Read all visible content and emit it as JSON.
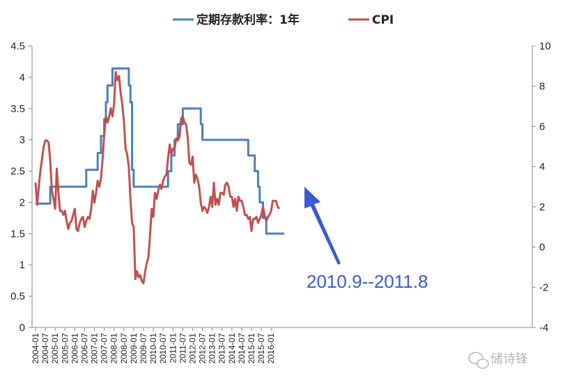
{
  "chart_data": {
    "type": "line",
    "title": "",
    "legend": {
      "placement": "top-center"
    },
    "grid": false,
    "x_ticks": [
      "2004-01",
      "2004-07",
      "2005-01",
      "2005-07",
      "2006-01",
      "2006-07",
      "2007-01",
      "2007-07",
      "2008-01",
      "2008-07",
      "2009-01",
      "2009-07",
      "2010-01",
      "2010-07",
      "2011-01",
      "2011-07",
      "2012-01",
      "2012-07",
      "2013-01",
      "2013-07",
      "2014-01",
      "2014-07",
      "2015-01",
      "2015-07",
      "2016-01"
    ],
    "y_left": {
      "min": 0,
      "max": 4.5,
      "ticks": [
        "0",
        "0.5",
        "1",
        "1.5",
        "2",
        "2.5",
        "3",
        "3.5",
        "4",
        "4.5"
      ]
    },
    "y_right": {
      "min": -4,
      "max": 10,
      "ticks": [
        "-4",
        "-2",
        "0",
        "2",
        "4",
        "6",
        "8",
        "10"
      ]
    },
    "series": [
      {
        "name": "定期存款利率：1年",
        "axis": "left",
        "color": "#4a7ebb",
        "step_points": [
          [
            "2004-01",
            1.98
          ],
          [
            "2004-10",
            1.98
          ],
          [
            "2004-10",
            2.25
          ],
          [
            "2006-08",
            2.25
          ],
          [
            "2006-08",
            2.52
          ],
          [
            "2007-03",
            2.52
          ],
          [
            "2007-03",
            2.79
          ],
          [
            "2007-05",
            2.79
          ],
          [
            "2007-05",
            3.06
          ],
          [
            "2007-07",
            3.06
          ],
          [
            "2007-07",
            3.33
          ],
          [
            "2007-08",
            3.33
          ],
          [
            "2007-08",
            3.6
          ],
          [
            "2007-09",
            3.6
          ],
          [
            "2007-09",
            3.87
          ],
          [
            "2007-12",
            3.87
          ],
          [
            "2007-12",
            4.14
          ],
          [
            "2008-10",
            4.14
          ],
          [
            "2008-10",
            3.87
          ],
          [
            "2008-11",
            3.87
          ],
          [
            "2008-11",
            3.6
          ],
          [
            "2008-12",
            3.6
          ],
          [
            "2008-12",
            2.52
          ],
          [
            "2009-01",
            2.52
          ],
          [
            "2009-01",
            2.25
          ],
          [
            "2010-10",
            2.25
          ],
          [
            "2010-10",
            2.5
          ],
          [
            "2010-12",
            2.5
          ],
          [
            "2010-12",
            2.75
          ],
          [
            "2011-02",
            2.75
          ],
          [
            "2011-02",
            3.0
          ],
          [
            "2011-04",
            3.0
          ],
          [
            "2011-04",
            3.25
          ],
          [
            "2011-07",
            3.25
          ],
          [
            "2011-07",
            3.5
          ],
          [
            "2012-06",
            3.5
          ],
          [
            "2012-06",
            3.25
          ],
          [
            "2012-07",
            3.25
          ],
          [
            "2012-07",
            3.0
          ],
          [
            "2014-11",
            3.0
          ],
          [
            "2014-11",
            2.75
          ],
          [
            "2015-03",
            2.75
          ],
          [
            "2015-03",
            2.5
          ],
          [
            "2015-05",
            2.5
          ],
          [
            "2015-05",
            2.25
          ],
          [
            "2015-06",
            2.25
          ],
          [
            "2015-06",
            2.0
          ],
          [
            "2015-08",
            2.0
          ],
          [
            "2015-08",
            1.75
          ],
          [
            "2015-10",
            1.75
          ],
          [
            "2015-10",
            1.5
          ],
          [
            "2016-09",
            1.5
          ]
        ]
      },
      {
        "name": "CPI",
        "axis": "right",
        "color": "#c0504d",
        "points": [
          [
            "2004-01",
            3.2
          ],
          [
            "2004-02",
            2.1
          ],
          [
            "2004-03",
            3.0
          ],
          [
            "2004-04",
            3.8
          ],
          [
            "2004-05",
            4.4
          ],
          [
            "2004-06",
            5.0
          ],
          [
            "2004-07",
            5.3
          ],
          [
            "2004-08",
            5.3
          ],
          [
            "2004-09",
            5.2
          ],
          [
            "2004-10",
            4.3
          ],
          [
            "2004-11",
            2.8
          ],
          [
            "2004-12",
            2.4
          ],
          [
            "2005-01",
            1.9
          ],
          [
            "2005-02",
            3.9
          ],
          [
            "2005-03",
            2.7
          ],
          [
            "2005-04",
            1.8
          ],
          [
            "2005-05",
            1.8
          ],
          [
            "2005-06",
            1.6
          ],
          [
            "2005-07",
            1.8
          ],
          [
            "2005-08",
            1.3
          ],
          [
            "2005-09",
            0.9
          ],
          [
            "2005-10",
            1.2
          ],
          [
            "2005-11",
            1.3
          ],
          [
            "2005-12",
            1.6
          ],
          [
            "2006-01",
            1.9
          ],
          [
            "2006-02",
            0.9
          ],
          [
            "2006-03",
            0.8
          ],
          [
            "2006-04",
            1.2
          ],
          [
            "2006-05",
            1.4
          ],
          [
            "2006-06",
            1.5
          ],
          [
            "2006-07",
            1.0
          ],
          [
            "2006-08",
            1.3
          ],
          [
            "2006-09",
            1.5
          ],
          [
            "2006-10",
            1.4
          ],
          [
            "2006-11",
            1.9
          ],
          [
            "2006-12",
            2.8
          ],
          [
            "2007-01",
            2.2
          ],
          [
            "2007-02",
            2.7
          ],
          [
            "2007-03",
            3.3
          ],
          [
            "2007-04",
            3.0
          ],
          [
            "2007-05",
            3.4
          ],
          [
            "2007-06",
            4.4
          ],
          [
            "2007-07",
            5.6
          ],
          [
            "2007-08",
            6.5
          ],
          [
            "2007-09",
            6.2
          ],
          [
            "2007-10",
            6.5
          ],
          [
            "2007-11",
            6.9
          ],
          [
            "2007-12",
            6.5
          ],
          [
            "2008-01",
            7.1
          ],
          [
            "2008-02",
            8.7
          ],
          [
            "2008-03",
            8.3
          ],
          [
            "2008-04",
            8.5
          ],
          [
            "2008-05",
            7.7
          ],
          [
            "2008-06",
            7.1
          ],
          [
            "2008-07",
            6.3
          ],
          [
            "2008-08",
            4.9
          ],
          [
            "2008-09",
            4.6
          ],
          [
            "2008-10",
            4.0
          ],
          [
            "2008-11",
            2.4
          ],
          [
            "2008-12",
            1.2
          ],
          [
            "2009-01",
            1.0
          ],
          [
            "2009-02",
            -1.6
          ],
          [
            "2009-03",
            -1.2
          ],
          [
            "2009-04",
            -1.5
          ],
          [
            "2009-05",
            -1.4
          ],
          [
            "2009-06",
            -1.7
          ],
          [
            "2009-07",
            -1.8
          ],
          [
            "2009-08",
            -1.2
          ],
          [
            "2009-09",
            -0.8
          ],
          [
            "2009-10",
            -0.5
          ],
          [
            "2009-11",
            0.6
          ],
          [
            "2009-12",
            1.9
          ],
          [
            "2010-01",
            1.5
          ],
          [
            "2010-02",
            2.7
          ],
          [
            "2010-03",
            2.4
          ],
          [
            "2010-04",
            2.8
          ],
          [
            "2010-05",
            3.1
          ],
          [
            "2010-06",
            2.9
          ],
          [
            "2010-07",
            3.3
          ],
          [
            "2010-08",
            3.5
          ],
          [
            "2010-09",
            3.6
          ],
          [
            "2010-10",
            4.4
          ],
          [
            "2010-11",
            5.1
          ],
          [
            "2010-12",
            4.6
          ],
          [
            "2011-01",
            4.9
          ],
          [
            "2011-02",
            4.9
          ],
          [
            "2011-03",
            5.4
          ],
          [
            "2011-04",
            5.3
          ],
          [
            "2011-05",
            5.5
          ],
          [
            "2011-06",
            6.4
          ],
          [
            "2011-07",
            6.5
          ],
          [
            "2011-08",
            6.2
          ],
          [
            "2011-09",
            6.1
          ],
          [
            "2011-10",
            5.5
          ],
          [
            "2011-11",
            4.2
          ],
          [
            "2011-12",
            4.1
          ],
          [
            "2012-01",
            4.5
          ],
          [
            "2012-02",
            3.2
          ],
          [
            "2012-03",
            3.6
          ],
          [
            "2012-04",
            3.4
          ],
          [
            "2012-05",
            3.0
          ],
          [
            "2012-06",
            2.2
          ],
          [
            "2012-07",
            1.8
          ],
          [
            "2012-08",
            2.0
          ],
          [
            "2012-09",
            1.9
          ],
          [
            "2012-10",
            1.7
          ],
          [
            "2012-11",
            2.0
          ],
          [
            "2012-12",
            2.5
          ],
          [
            "2013-01",
            2.0
          ],
          [
            "2013-02",
            3.2
          ],
          [
            "2013-03",
            2.1
          ],
          [
            "2013-04",
            2.4
          ],
          [
            "2013-05",
            2.1
          ],
          [
            "2013-06",
            2.7
          ],
          [
            "2013-07",
            2.7
          ],
          [
            "2013-08",
            2.6
          ],
          [
            "2013-09",
            3.1
          ],
          [
            "2013-10",
            3.2
          ],
          [
            "2013-11",
            3.0
          ],
          [
            "2013-12",
            2.5
          ],
          [
            "2014-01",
            2.5
          ],
          [
            "2014-02",
            2.0
          ],
          [
            "2014-03",
            2.4
          ],
          [
            "2014-04",
            1.8
          ],
          [
            "2014-05",
            2.5
          ],
          [
            "2014-06",
            2.3
          ],
          [
            "2014-07",
            2.3
          ],
          [
            "2014-08",
            2.0
          ],
          [
            "2014-09",
            1.6
          ],
          [
            "2014-10",
            1.6
          ],
          [
            "2014-11",
            1.4
          ],
          [
            "2014-12",
            1.5
          ],
          [
            "2015-01",
            0.8
          ],
          [
            "2015-02",
            1.4
          ],
          [
            "2015-03",
            1.4
          ],
          [
            "2015-04",
            1.5
          ],
          [
            "2015-05",
            1.2
          ],
          [
            "2015-06",
            1.4
          ],
          [
            "2015-07",
            1.6
          ],
          [
            "2015-08",
            2.0
          ],
          [
            "2015-09",
            1.6
          ],
          [
            "2015-10",
            1.3
          ],
          [
            "2015-11",
            1.5
          ],
          [
            "2015-12",
            1.6
          ],
          [
            "2016-01",
            1.8
          ],
          [
            "2016-02",
            2.3
          ],
          [
            "2016-03",
            2.3
          ],
          [
            "2016-04",
            2.3
          ],
          [
            "2016-05",
            2.0
          ],
          [
            "2016-06",
            1.9
          ]
        ]
      }
    ],
    "annotations": [
      {
        "text": "2010.9--2011.8",
        "arrow_to": [
          "2010-09",
          2.25
        ]
      }
    ]
  },
  "watermark": {
    "text": "储诗锋",
    "icon": "wechat-icon"
  }
}
